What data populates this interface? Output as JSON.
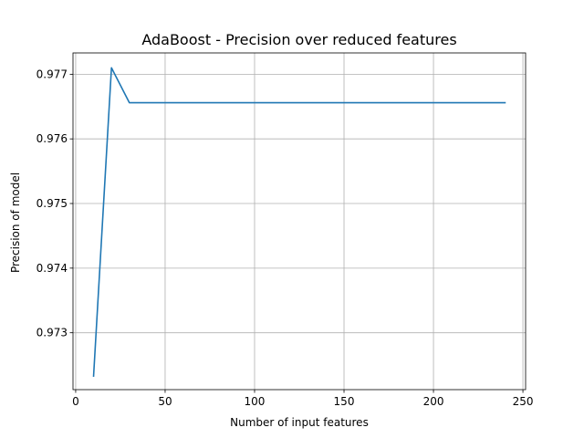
{
  "chart_data": {
    "type": "line",
    "title": "AdaBoost - Precision over reduced features",
    "xlabel": "Number of input features",
    "ylabel": "Precision of model",
    "xlim": [
      -1.5,
      251.5
    ],
    "ylim": [
      0.97212,
      0.97733
    ],
    "xticks": [
      0,
      50,
      100,
      150,
      200,
      250
    ],
    "xtick_labels": [
      "0",
      "50",
      "100",
      "150",
      "200",
      "250"
    ],
    "yticks": [
      0.973,
      0.974,
      0.975,
      0.976,
      0.977
    ],
    "ytick_labels": [
      "0.973",
      "0.974",
      "0.975",
      "0.976",
      "0.977"
    ],
    "grid": true,
    "series": [
      {
        "color": "#1f77b4",
        "x": [
          10,
          20,
          30,
          40,
          50,
          60,
          70,
          80,
          90,
          100,
          110,
          120,
          130,
          140,
          150,
          160,
          170,
          180,
          190,
          200,
          210,
          220,
          230,
          240
        ],
        "y": [
          0.97233,
          0.9771,
          0.97656,
          0.97656,
          0.97656,
          0.97656,
          0.97656,
          0.97656,
          0.97656,
          0.97656,
          0.97656,
          0.97656,
          0.97656,
          0.97656,
          0.97656,
          0.97656,
          0.97656,
          0.97656,
          0.97656,
          0.97656,
          0.97656,
          0.97656,
          0.97656,
          0.97656
        ]
      }
    ]
  }
}
